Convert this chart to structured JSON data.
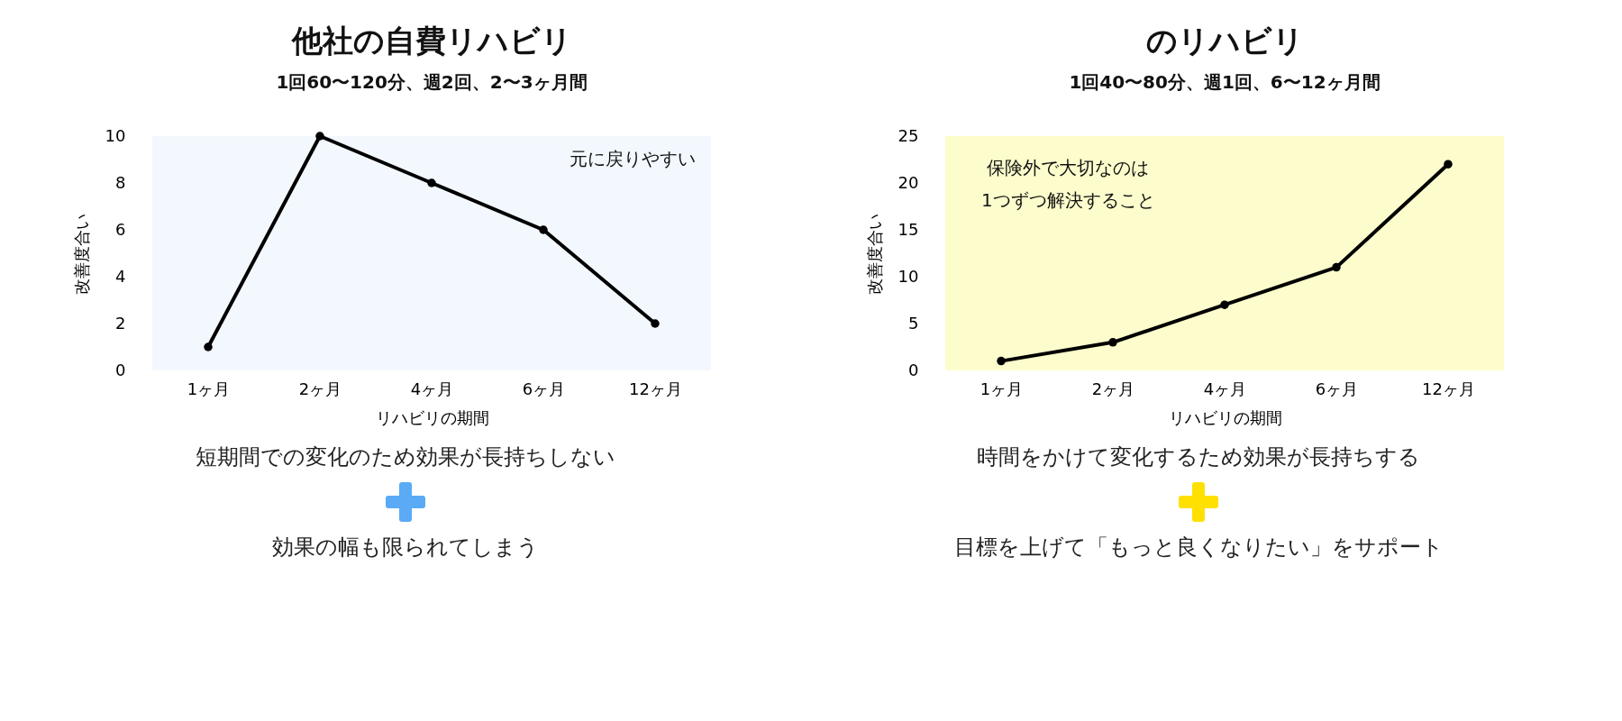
{
  "chart_data": [
    {
      "type": "line",
      "title": "他社の自費リハビリ",
      "subtitle": "1回60〜120分、週2回、2〜3ヶ月間",
      "xlabel": "リハビリの期間",
      "ylabel": "改善度合い",
      "categories": [
        "1ヶ月",
        "2ヶ月",
        "4ヶ月",
        "6ヶ月",
        "12ヶ月"
      ],
      "series": [
        {
          "color": "#000000",
          "values": [
            1,
            10,
            8,
            6,
            2
          ]
        }
      ],
      "ylim": [
        0,
        10
      ],
      "yticks": [
        0,
        2,
        4,
        6,
        8,
        10
      ],
      "grid": false,
      "marker": "circle",
      "line_style": "solid",
      "annotations": [
        "元に戻りやすい",
        "短期間での変化のため効果が長持ちしない",
        "効果の幅も限られてしまう"
      ]
    },
    {
      "type": "line",
      "title": "のリハビリ",
      "subtitle": "1回40〜80分、週1回、6〜12ヶ月間",
      "xlabel": "リハビリの期間",
      "ylabel": "改善度合い",
      "categories": [
        "1ヶ月",
        "2ヶ月",
        "4ヶ月",
        "6ヶ月",
        "12ヶ月"
      ],
      "series": [
        {
          "color": "#000000",
          "values": [
            1,
            3,
            7,
            11,
            22
          ]
        }
      ],
      "ylim": [
        0,
        25
      ],
      "yticks": [
        0,
        5,
        10,
        15,
        20,
        25
      ],
      "grid": false,
      "marker": "circle",
      "line_style": "solid",
      "annotations": [
        "保険外で大切なのは\n1つずつ解決すること",
        "時間をかけて変化するため効果が長持ちする",
        "目標を上げて「もっと良くなりたい」をサポート"
      ]
    }
  ]
}
